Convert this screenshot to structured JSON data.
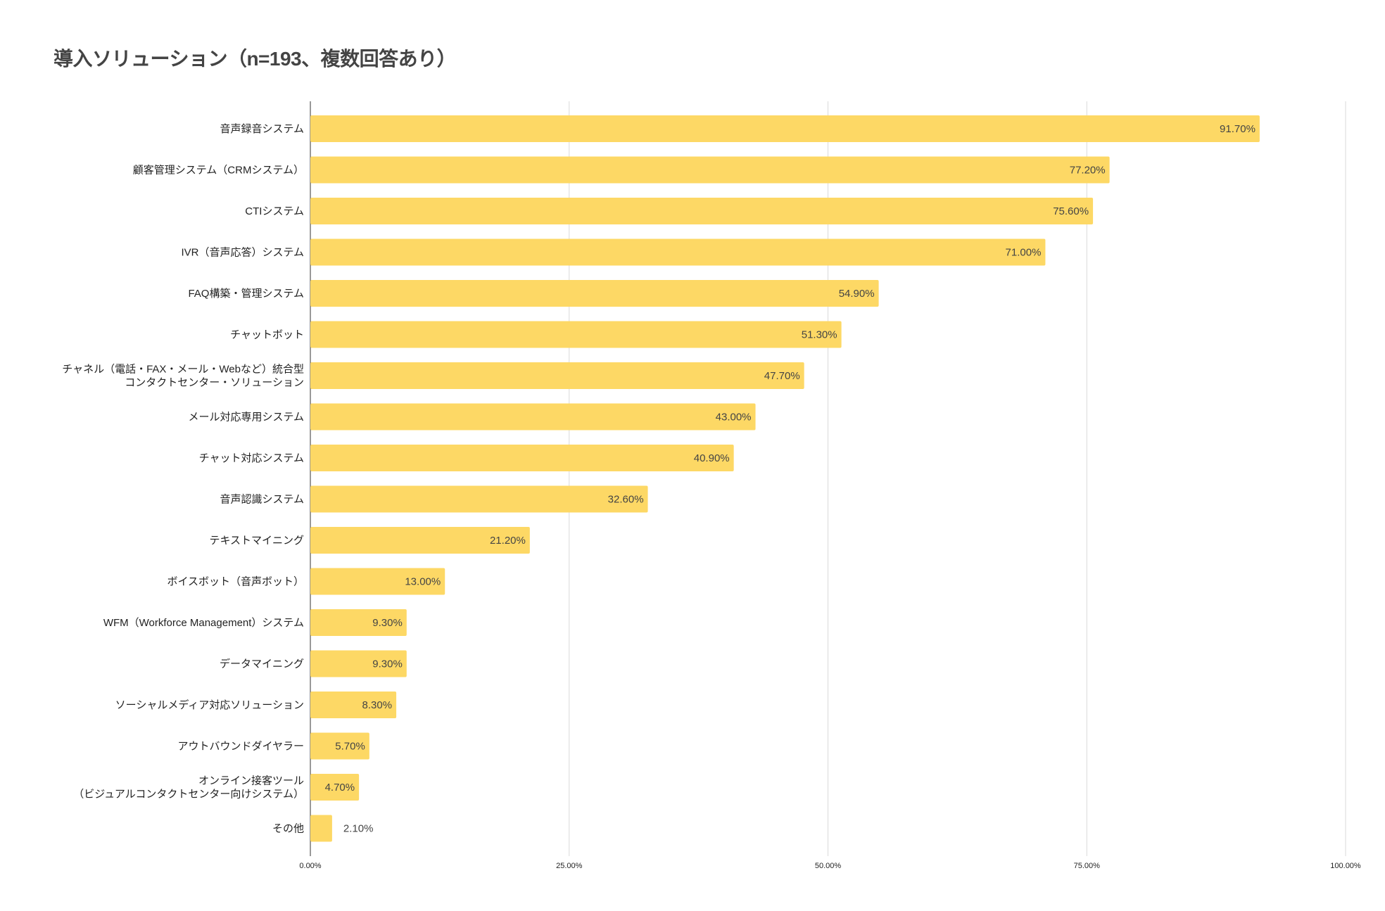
{
  "chart_data": {
    "type": "bar",
    "orientation": "horizontal",
    "title": "導入ソリューション（n=193、複数回答あり）",
    "categories": [
      "音声録音システム",
      "顧客管理システム（CRMシステム）",
      "CTIシステム",
      "IVR（音声応答）システム",
      "FAQ構築・管理システム",
      "チャットボット",
      "チャネル（電話・FAX・メール・Webなど）統合型\nコンタクトセンター・ソリューション",
      "メール対応専用システム",
      "チャット対応システム",
      "音声認識システム",
      "テキストマイニング",
      "ボイスボット（音声ボット）",
      "WFM（Workforce Management）システム",
      "データマイニング",
      "ソーシャルメディア対応ソリューション",
      "アウトバウンドダイヤラー",
      "オンライン接客ツール\n（ビジュアルコンタクトセンター向けシステム）",
      "その他"
    ],
    "values": [
      91.7,
      77.2,
      75.6,
      71.0,
      54.9,
      51.3,
      47.7,
      43.0,
      40.9,
      32.6,
      21.2,
      13.0,
      9.3,
      9.3,
      8.3,
      5.7,
      4.7,
      2.1
    ],
    "value_labels": [
      "91.70%",
      "77.20%",
      "75.60%",
      "71.00%",
      "54.90%",
      "51.30%",
      "47.70%",
      "43.00%",
      "40.90%",
      "32.60%",
      "21.20%",
      "13.00%",
      "9.30%",
      "9.30%",
      "8.30%",
      "5.70%",
      "4.70%",
      "2.10%"
    ],
    "xlim": [
      0,
      100
    ],
    "xticks": [
      "0.00%",
      "25.00%",
      "50.00%",
      "75.00%",
      "100.00%"
    ],
    "xtick_values": [
      0,
      25,
      50,
      75,
      100
    ],
    "grid": true,
    "bar_color": "#FDD865",
    "legend": "none"
  }
}
